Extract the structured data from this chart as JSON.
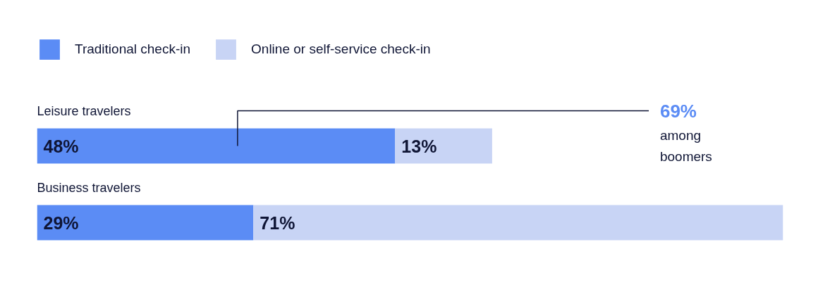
{
  "chart_data": {
    "type": "bar",
    "orientation": "horizontal",
    "stacked": true,
    "xlim": [
      0,
      100
    ],
    "categories": [
      "Leisure travelers",
      "Business travelers"
    ],
    "series": [
      {
        "name": "Traditional check-in",
        "color": "#5b8cf5",
        "values": [
          48,
          29
        ],
        "value_labels": [
          "48%",
          "29%"
        ]
      },
      {
        "name": "Online or self-service check-in",
        "color": "#c8d4f5",
        "values": [
          13,
          71
        ],
        "value_labels": [
          "13%",
          "71%"
        ]
      }
    ],
    "legend": "top left",
    "annotations": [
      "69% among boomers"
    ]
  }
}
